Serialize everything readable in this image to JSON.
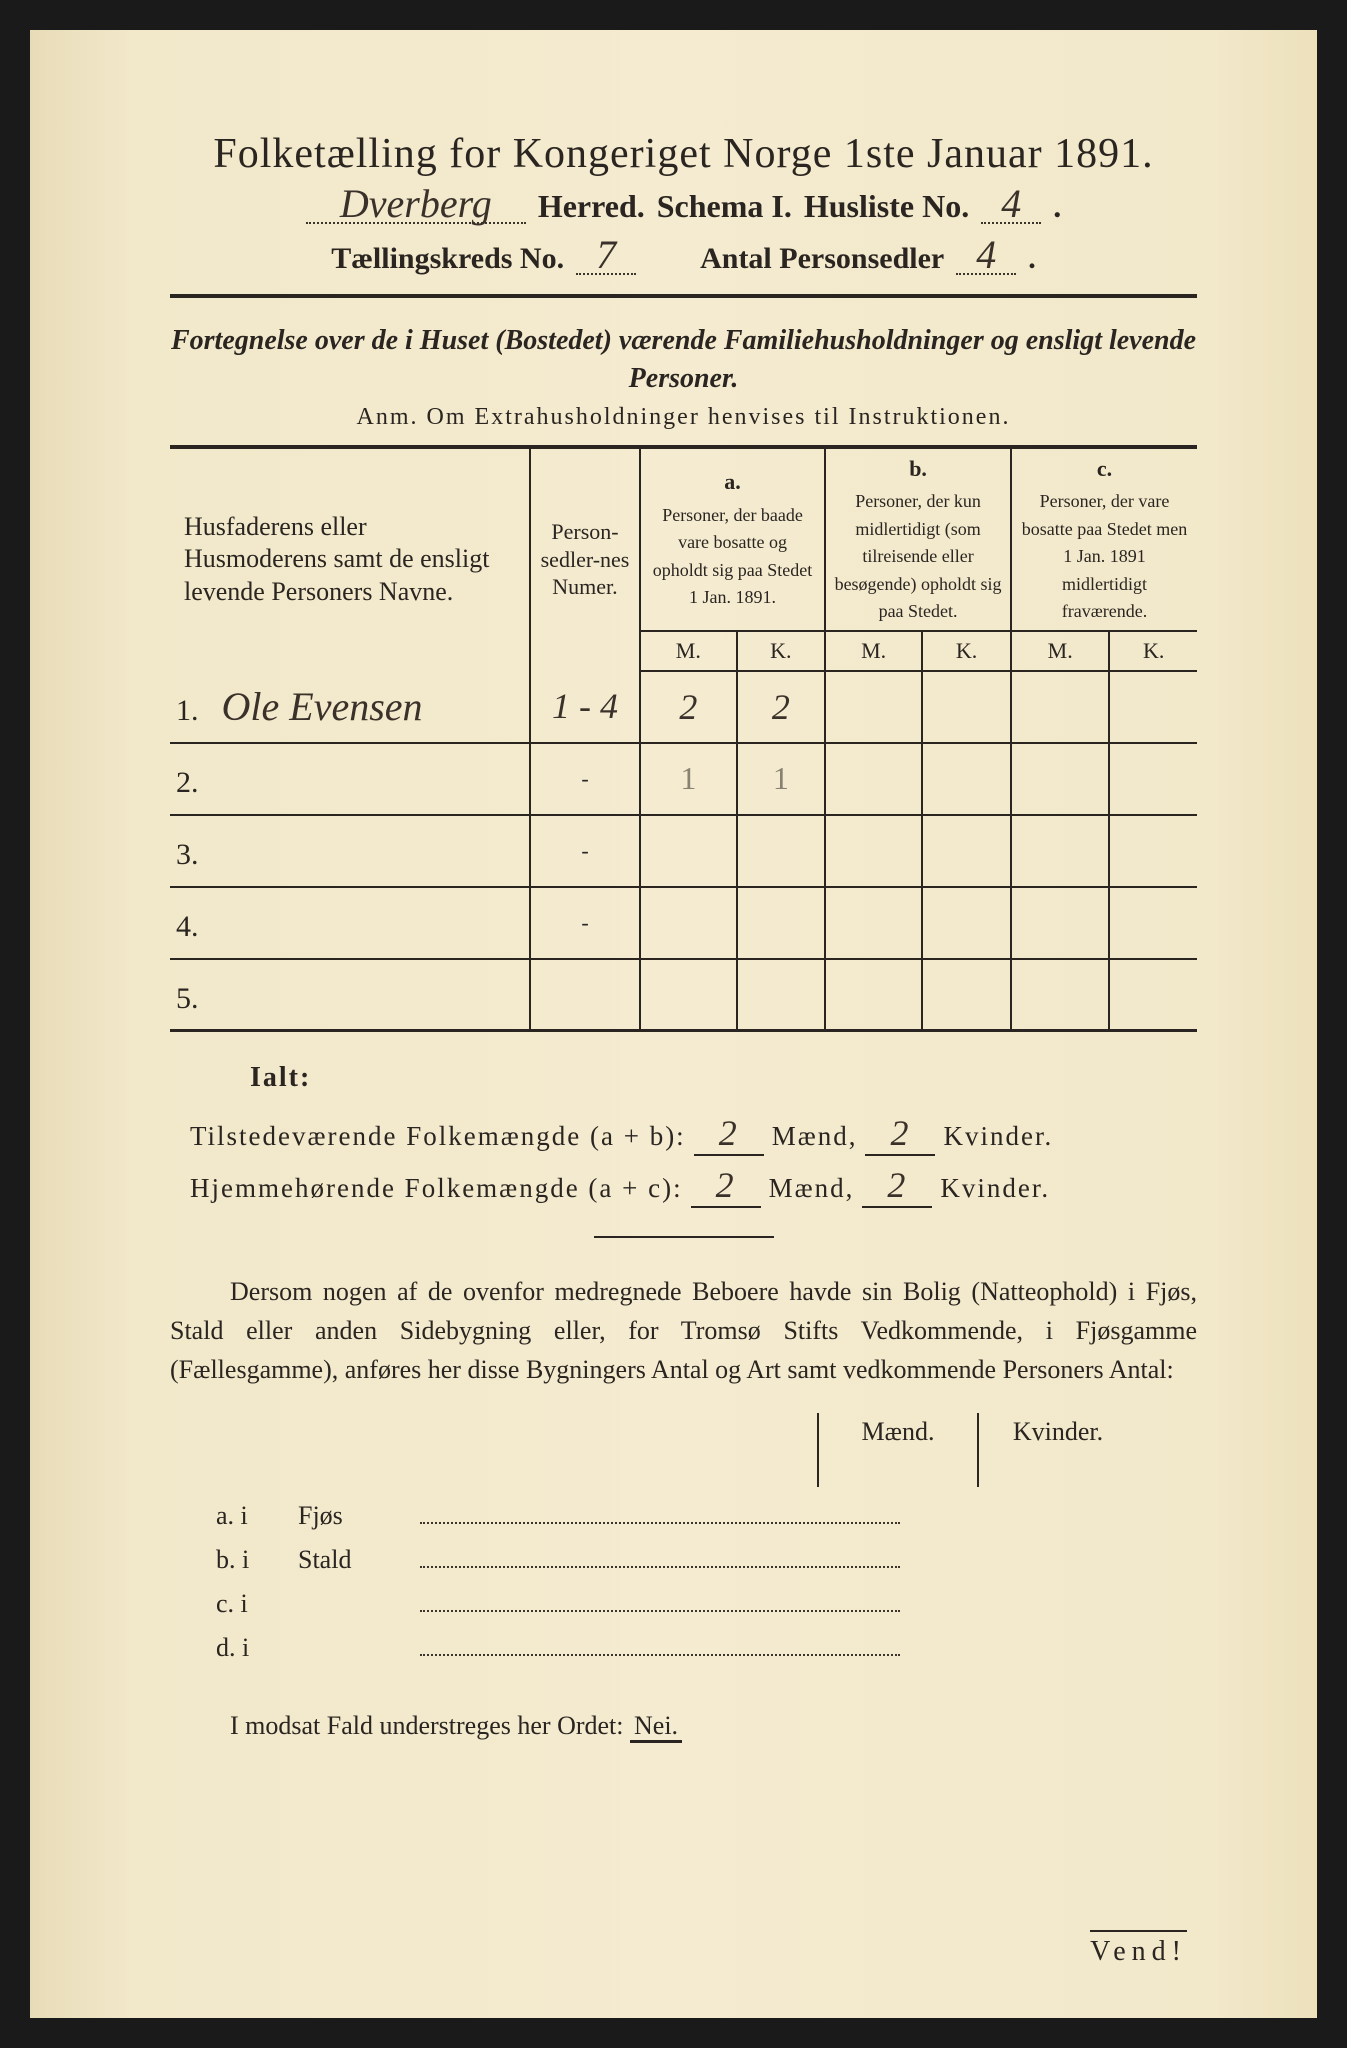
{
  "colors": {
    "paper": "#f2e8ca",
    "ink": "#2a2520",
    "handwriting": "#3a322a",
    "faint_pencil": "#8a8270",
    "frame": "#1a1a1a"
  },
  "typography": {
    "title_fontsize_pt": 32,
    "body_fontsize_pt": 20,
    "handwriting_font": "Brush Script MT"
  },
  "header": {
    "title": "Folketælling for Kongeriget Norge 1ste Januar 1891.",
    "herred_value": "Dverberg",
    "herred_label": "Herred.",
    "schema_label": "Schema I.",
    "husliste_label": "Husliste No.",
    "husliste_value": "4",
    "kreds_label": "Tællingskreds No.",
    "kreds_value": "7",
    "personsedler_label": "Antal Personsedler",
    "personsedler_value": "4"
  },
  "subtitle": {
    "line": "Fortegnelse over de i Huset (Bostedet) værende Familiehusholdninger og ensligt levende Personer.",
    "anm": "Anm.  Om Extrahusholdninger henvises til Instruktionen."
  },
  "table": {
    "col_name": "Husfaderens eller Husmoderens samt de ensligt levende Personers Navne.",
    "col_sedler": "Person-sedler-nes Numer.",
    "col_a_label": "a.",
    "col_a": "Personer, der baade vare bosatte og opholdt sig paa Stedet 1 Jan. 1891.",
    "col_b_label": "b.",
    "col_b": "Personer, der kun midlertidigt (som tilreisende eller besøgende) opholdt sig paa Stedet.",
    "col_c_label": "c.",
    "col_c": "Personer, der vare bosatte paa Stedet men 1 Jan. 1891 midlertidigt fraværende.",
    "mk_m": "M.",
    "mk_k": "K.",
    "rows": [
      {
        "num": "1.",
        "name": "Ole Evensen",
        "sedler": "1 - 4",
        "a_m": "2",
        "a_k": "2",
        "b_m": "",
        "b_k": "",
        "c_m": "",
        "c_k": ""
      },
      {
        "num": "2.",
        "name": "",
        "sedler": "-",
        "a_m": "1",
        "a_k": "1",
        "b_m": "",
        "b_k": "",
        "c_m": "",
        "c_k": "",
        "faint": true
      },
      {
        "num": "3.",
        "name": "",
        "sedler": "-",
        "a_m": "",
        "a_k": "",
        "b_m": "",
        "b_k": "",
        "c_m": "",
        "c_k": ""
      },
      {
        "num": "4.",
        "name": "",
        "sedler": "-",
        "a_m": "",
        "a_k": "",
        "b_m": "",
        "b_k": "",
        "c_m": "",
        "c_k": ""
      },
      {
        "num": "5.",
        "name": "",
        "sedler": "",
        "a_m": "",
        "a_k": "",
        "b_m": "",
        "b_k": "",
        "c_m": "",
        "c_k": ""
      }
    ]
  },
  "totals": {
    "ialt_label": "Ialt:",
    "line1_label": "Tilstedeværende Folkemængde (a + b):",
    "line2_label": "Hjemmehørende Folkemængde (a + c):",
    "maend_label": "Mænd,",
    "kvinder_label": "Kvinder.",
    "line1_m": "2",
    "line1_k": "2",
    "line2_m": "2",
    "line2_k": "2"
  },
  "paragraph": "Dersom nogen af de ovenfor medregnede Beboere havde sin Bolig (Natteophold) i Fjøs, Stald eller anden Sidebygning eller, for Tromsø Stifts Vedkommende, i Fjøsgamme (Fællesgamme), anføres her disse Bygningers Antal og Art samt vedkommende Personers Antal:",
  "mk_section": {
    "maend": "Mænd.",
    "kvinder": "Kvinder.",
    "rows": [
      {
        "label": "a.  i",
        "type": "Fjøs"
      },
      {
        "label": "b.  i",
        "type": "Stald"
      },
      {
        "label": "c.  i",
        "type": ""
      },
      {
        "label": "d.  i",
        "type": ""
      }
    ]
  },
  "footer": {
    "line": "I modsat Fald understreges her Ordet:",
    "nei": "Nei.",
    "vend": "Vend!"
  }
}
